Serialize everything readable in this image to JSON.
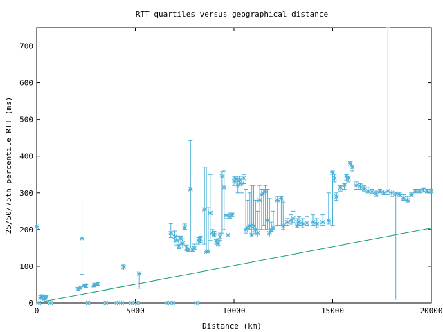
{
  "chart_data": {
    "type": "scatter",
    "title": "RTT quartiles versus geographical distance",
    "xlabel": "Distance (km)",
    "ylabel": "25/50/75th percentile RTT (ms)",
    "xlim": [
      0,
      20000
    ],
    "ylim": [
      0,
      750
    ],
    "x_ticks": [
      "0",
      "5000",
      "10000",
      "15000",
      "20000"
    ],
    "y_ticks": [
      "0",
      "100",
      "200",
      "300",
      "400",
      "500",
      "600",
      "700"
    ],
    "x_tick_values": [
      0,
      5000,
      10000,
      15000,
      20000
    ],
    "y_tick_values": [
      0,
      100,
      200,
      300,
      400,
      500,
      600,
      700
    ],
    "grid": false,
    "legend": "none",
    "colors": {
      "points": "#4aafd6",
      "line": "#119977",
      "frame": "#000000"
    },
    "series": [
      {
        "type": "errorbar",
        "points": [
          [
            0,
            208,
            205,
            212
          ],
          [
            100,
            0,
            0,
            0
          ],
          [
            200,
            14,
            10,
            20
          ],
          [
            300,
            18,
            12,
            22
          ],
          [
            400,
            12,
            8,
            18
          ],
          [
            500,
            16,
            10,
            20
          ],
          [
            700,
            0,
            0,
            0
          ],
          [
            2100,
            38,
            34,
            42
          ],
          [
            2200,
            42,
            38,
            46
          ],
          [
            2300,
            176,
            78,
            278
          ],
          [
            2400,
            48,
            44,
            52
          ],
          [
            2500,
            46,
            42,
            50
          ],
          [
            2600,
            0,
            0,
            0
          ],
          [
            2900,
            48,
            44,
            52
          ],
          [
            3000,
            50,
            46,
            54
          ],
          [
            3100,
            52,
            48,
            56
          ],
          [
            3500,
            0,
            0,
            0
          ],
          [
            4000,
            0,
            0,
            0
          ],
          [
            4300,
            0,
            0,
            0
          ],
          [
            4400,
            98,
            90,
            104
          ],
          [
            4800,
            0,
            0,
            0
          ],
          [
            5100,
            0,
            0,
            0
          ],
          [
            5200,
            80,
            40,
            82
          ],
          [
            6600,
            0,
            0,
            0
          ],
          [
            6900,
            0,
            0,
            0
          ],
          [
            6800,
            190,
            178,
            216
          ],
          [
            7000,
            180,
            168,
            196
          ],
          [
            7100,
            170,
            158,
            182
          ],
          [
            7200,
            155,
            148,
            182
          ],
          [
            7300,
            175,
            160,
            182
          ],
          [
            7400,
            162,
            150,
            175
          ],
          [
            7500,
            205,
            200,
            215
          ],
          [
            7600,
            150,
            142,
            158
          ],
          [
            7700,
            145,
            140,
            150
          ],
          [
            7800,
            310,
            150,
            442
          ],
          [
            7900,
            145,
            140,
            155
          ],
          [
            8000,
            150,
            145,
            160
          ],
          [
            8100,
            0,
            0,
            0
          ],
          [
            8200,
            170,
            160,
            178
          ],
          [
            8300,
            175,
            165,
            182
          ],
          [
            8500,
            255,
            160,
            370
          ],
          [
            8600,
            140,
            138,
            370
          ],
          [
            8700,
            140,
            138,
            260
          ],
          [
            8800,
            245,
            170,
            350
          ],
          [
            8900,
            190,
            180,
            200
          ],
          [
            9000,
            185,
            180,
            195
          ],
          [
            9100,
            168,
            160,
            172
          ],
          [
            9200,
            162,
            155,
            175
          ],
          [
            9300,
            180,
            170,
            190
          ],
          [
            9400,
            345,
            190,
            358
          ],
          [
            9500,
            315,
            200,
            360
          ],
          [
            9600,
            238,
            230,
            240
          ],
          [
            9700,
            185,
            180,
            240
          ],
          [
            9800,
            235,
            230,
            245
          ],
          [
            9900,
            240,
            235,
            245
          ],
          [
            10000,
            332,
            320,
            345
          ],
          [
            10100,
            338,
            330,
            345
          ],
          [
            10200,
            320,
            300,
            340
          ],
          [
            10300,
            335,
            320,
            345
          ],
          [
            10400,
            325,
            300,
            340
          ],
          [
            10500,
            340,
            325,
            350
          ],
          [
            10600,
            200,
            190,
            310
          ],
          [
            10700,
            205,
            200,
            280
          ],
          [
            10800,
            210,
            200,
            300
          ],
          [
            10900,
            185,
            180,
            320
          ],
          [
            11000,
            210,
            200,
            320
          ],
          [
            11100,
            200,
            190,
            280
          ],
          [
            11200,
            190,
            180,
            250
          ],
          [
            11300,
            280,
            200,
            320
          ],
          [
            11400,
            295,
            200,
            310
          ],
          [
            11500,
            300,
            210,
            310
          ],
          [
            11600,
            305,
            200,
            320
          ],
          [
            11700,
            225,
            200,
            310
          ],
          [
            11800,
            190,
            180,
            285
          ],
          [
            11900,
            200,
            195,
            220
          ],
          [
            12000,
            205,
            200,
            250
          ],
          [
            12200,
            280,
            210,
            290
          ],
          [
            12400,
            285,
            210,
            290
          ],
          [
            12500,
            210,
            200,
            275
          ],
          [
            12700,
            220,
            210,
            230
          ],
          [
            12900,
            225,
            215,
            240
          ],
          [
            13000,
            230,
            220,
            250
          ],
          [
            13200,
            210,
            205,
            230
          ],
          [
            13300,
            220,
            210,
            235
          ],
          [
            13500,
            215,
            205,
            230
          ],
          [
            13700,
            218,
            210,
            235
          ],
          [
            14000,
            220,
            210,
            240
          ],
          [
            14200,
            215,
            205,
            230
          ],
          [
            14500,
            220,
            210,
            240
          ],
          [
            14800,
            225,
            215,
            300
          ],
          [
            15000,
            355,
            210,
            360
          ],
          [
            15100,
            340,
            330,
            350
          ],
          [
            15200,
            290,
            280,
            300
          ],
          [
            15400,
            315,
            305,
            320
          ],
          [
            15600,
            320,
            310,
            325
          ],
          [
            15700,
            345,
            335,
            350
          ],
          [
            15800,
            340,
            330,
            345
          ],
          [
            15900,
            380,
            370,
            385
          ],
          [
            16000,
            370,
            360,
            375
          ],
          [
            16200,
            320,
            310,
            330
          ],
          [
            16400,
            318,
            310,
            325
          ],
          [
            16600,
            312,
            305,
            320
          ],
          [
            16800,
            305,
            300,
            315
          ],
          [
            17000,
            303,
            298,
            310
          ],
          [
            17200,
            298,
            290,
            305
          ],
          [
            17400,
            305,
            300,
            310
          ],
          [
            17600,
            300,
            295,
            308
          ],
          [
            17800,
            305,
            295,
            750
          ],
          [
            18000,
            300,
            290,
            308
          ],
          [
            18200,
            298,
            10,
            302
          ],
          [
            18400,
            295,
            290,
            300
          ],
          [
            18600,
            285,
            280,
            295
          ],
          [
            18800,
            280,
            275,
            290
          ],
          [
            19000,
            295,
            290,
            300
          ],
          [
            19200,
            305,
            300,
            310
          ],
          [
            19400,
            305,
            300,
            310
          ],
          [
            19600,
            308,
            302,
            312
          ],
          [
            19800,
            305,
            300,
            310
          ],
          [
            20000,
            305,
            300,
            310
          ]
        ]
      },
      {
        "type": "line",
        "x": [
          0,
          20000
        ],
        "y": [
          0,
          204
        ]
      }
    ]
  }
}
